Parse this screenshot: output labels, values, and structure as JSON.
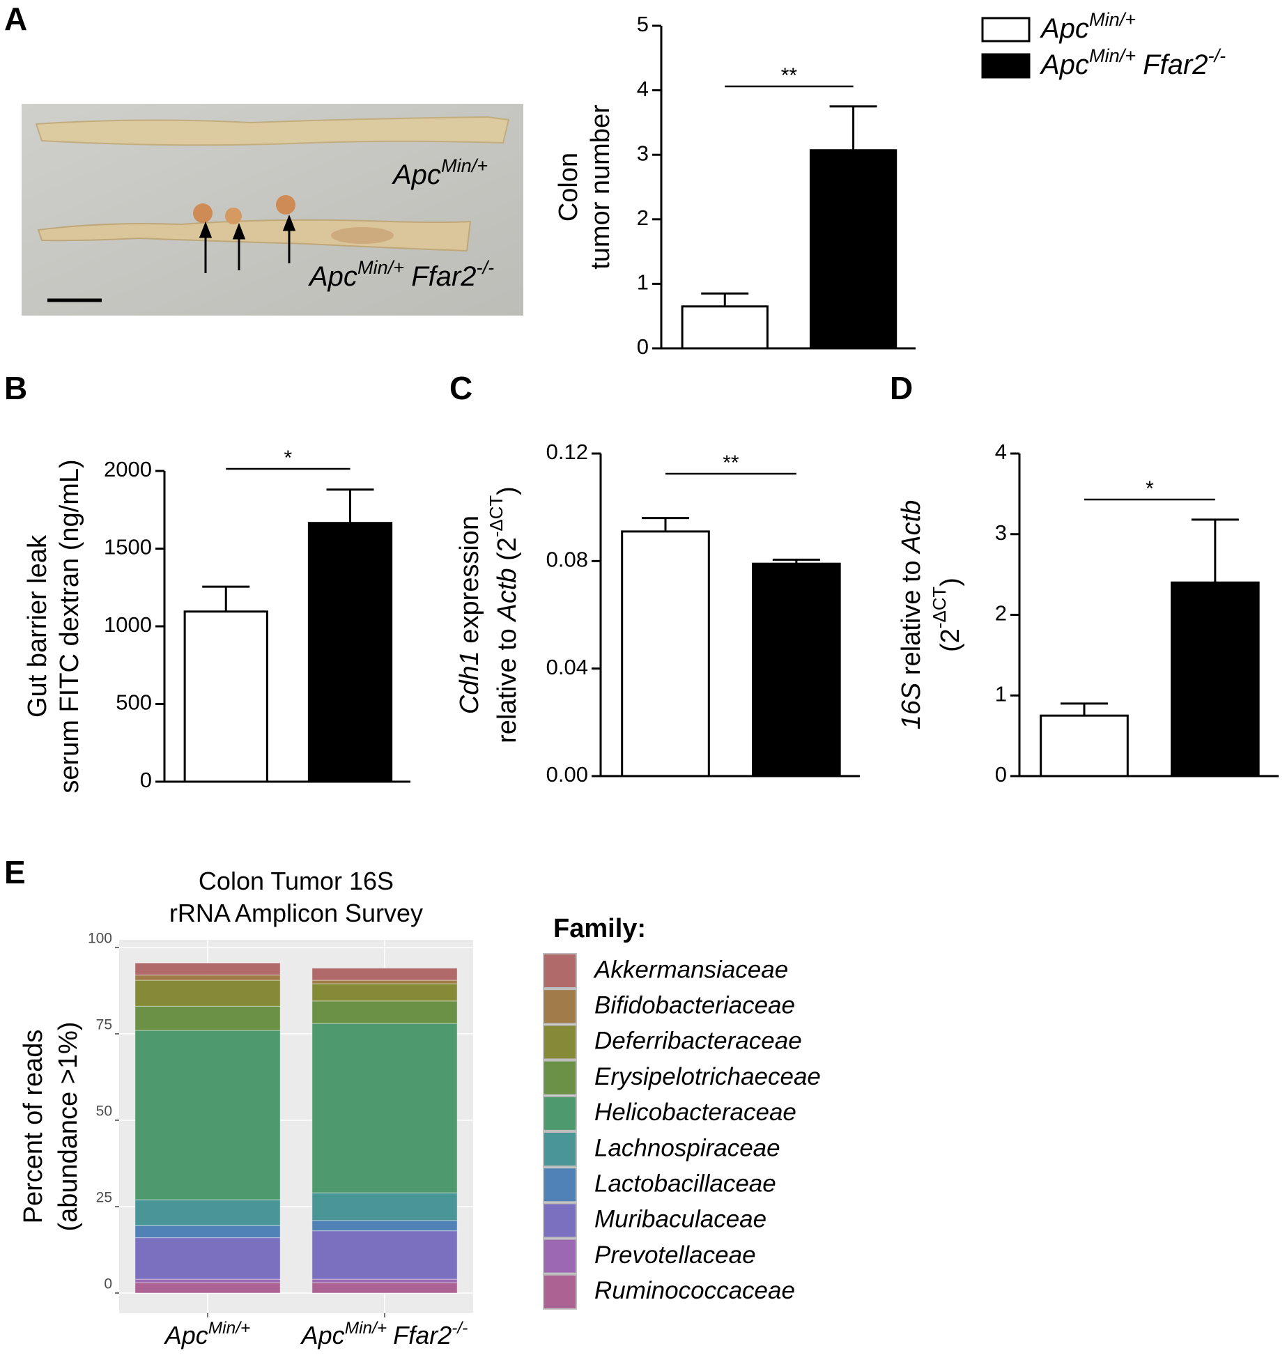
{
  "chart_data": [
    {
      "type": "bar",
      "panel": "A",
      "ylim": [
        0,
        5
      ],
      "yticks": [
        0,
        1,
        2,
        3,
        4,
        5
      ],
      "ylabel": [
        [
          "Colon"
        ],
        [
          "tumor number"
        ]
      ],
      "values": [
        0.65,
        3.07
      ],
      "errors": [
        0.2,
        0.68
      ],
      "colors": [
        "#ffffff",
        "#000000"
      ],
      "significance": "**",
      "legend": [
        [
          {
            "text": "Apc",
            "italic": true
          },
          {
            "text": "Min/+",
            "italic": true,
            "sup": true
          }
        ],
        [
          {
            "text": "Apc",
            "italic": true
          },
          {
            "text": "Min/+",
            "italic": true,
            "sup": true
          },
          {
            "text": "Ffar2",
            "italic": true
          },
          {
            "text": "-/-",
            "italic": true,
            "sup": true
          }
        ]
      ],
      "photo_labels": [
        [
          {
            "text": "Apc",
            "italic": true
          },
          {
            "text": "Min/+",
            "italic": true,
            "sup": true
          }
        ],
        [
          {
            "text": "Apc",
            "italic": true
          },
          {
            "text": "Min/+",
            "italic": true,
            "sup": true
          },
          {
            "text": "Ffar2",
            "italic": true
          },
          {
            "text": "-/-",
            "italic": true,
            "sup": true
          }
        ]
      ]
    },
    {
      "type": "bar",
      "panel": "B",
      "ylim": [
        0,
        2000
      ],
      "yticks": [
        0,
        500,
        1000,
        1500,
        2000
      ],
      "ylabel": [
        [
          "Gut barrier leak"
        ],
        [
          "serum FITC dextran (ng/mL)"
        ]
      ],
      "values": [
        1095,
        1665
      ],
      "errors": [
        160,
        215
      ],
      "colors": [
        "#ffffff",
        "#000000"
      ],
      "significance": "*"
    },
    {
      "type": "bar",
      "panel": "C",
      "ylim": [
        0,
        0.12
      ],
      "yticks": [
        {
          "value": 0,
          "label": "0.00"
        },
        0.04,
        0.08,
        0.12
      ],
      "ylabel": [
        [
          {
            "text": "Cdh1",
            "italic": true
          },
          " expression"
        ],
        [
          "relative to ",
          {
            "text": "Actb",
            "italic": true
          },
          " (2",
          {
            "text": "-ΔCT",
            "sup": true
          },
          ")"
        ]
      ],
      "values": [
        0.091,
        0.079
      ],
      "errors": [
        0.005,
        0.0015
      ],
      "colors": [
        "#ffffff",
        "#000000"
      ],
      "significance": "**"
    },
    {
      "type": "bar",
      "panel": "D",
      "ylim": [
        0,
        4
      ],
      "yticks": [
        0,
        1,
        2,
        3,
        4
      ],
      "ylabel": [
        [
          {
            "text": "16S",
            "italic": true
          },
          " relative to ",
          {
            "text": "Actb",
            "italic": true
          }
        ],
        [
          "(2",
          {
            "text": "-ΔCT",
            "sup": true
          },
          ")"
        ]
      ],
      "values": [
        0.75,
        2.4
      ],
      "errors": [
        0.15,
        0.78
      ],
      "colors": [
        "#ffffff",
        "#000000"
      ],
      "significance": "*"
    },
    {
      "type": "stacked_bar",
      "panel": "E",
      "title": [
        "Colon Tumor 16S",
        "rRNA Amplicon Survey"
      ],
      "ylim": [
        -5.85,
        102.2
      ],
      "yticks": [
        0,
        25,
        50,
        75,
        100
      ],
      "grid": true,
      "ylabel": [
        [
          "Percent of reads"
        ],
        [
          "(abundance >1%)"
        ]
      ],
      "categories": [
        [
          {
            "text": "Apc",
            "italic": true
          },
          {
            "text": "Min/+",
            "italic": true,
            "sup": true
          }
        ],
        [
          {
            "text": "Apc",
            "italic": true
          },
          {
            "text": "Min/+",
            "italic": true,
            "sup": true
          },
          {
            "text": "Ffar2",
            "italic": true
          },
          {
            "text": "-/-",
            "italic": true,
            "sup": true
          }
        ]
      ],
      "legend_title": "Family:",
      "series": [
        {
          "name": "Akkermansiaceae",
          "color": "#b06a6a",
          "values": [
            3.5,
            3.5
          ]
        },
        {
          "name": "Bifidobacteriaceae",
          "color": "#a07c48",
          "values": [
            1.5,
            1
          ]
        },
        {
          "name": "Deferribacteraceae",
          "color": "#858a37",
          "values": [
            7.5,
            5
          ]
        },
        {
          "name": "Erysipelotrichaeceae",
          "color": "#6a9145",
          "values": [
            7,
            6.5
          ]
        },
        {
          "name": "Helicobacteraceae",
          "color": "#4e9a6e",
          "values": [
            49,
            49
          ]
        },
        {
          "name": "Lachnospiraceae",
          "color": "#4a9696",
          "values": [
            7.5,
            8
          ]
        },
        {
          "name": "Lactobacillaceae",
          "color": "#5082b8",
          "values": [
            3.5,
            3
          ]
        },
        {
          "name": "Muribaculaceae",
          "color": "#7a70bf",
          "values": [
            12,
            14
          ]
        },
        {
          "name": "Prevotellaceae",
          "color": "#9c68b4",
          "values": [
            1,
            1
          ]
        },
        {
          "name": "Ruminococcaceae",
          "color": "#ac6292",
          "values": [
            3,
            3
          ]
        }
      ]
    }
  ]
}
